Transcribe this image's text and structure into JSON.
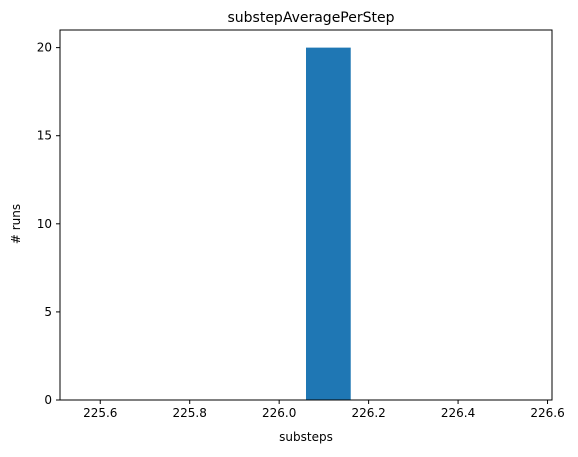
{
  "chart_data": {
    "type": "bar",
    "title": "substepAveragePerStep",
    "xlabel": "substeps",
    "ylabel": "# runs",
    "xlim": [
      225.51,
      226.61
    ],
    "ylim": [
      0,
      21
    ],
    "x_ticks": [
      "225.6",
      "225.8",
      "226.0",
      "226.2",
      "226.4",
      "226.6"
    ],
    "x_tick_values": [
      225.6,
      225.8,
      226.0,
      226.2,
      226.4,
      226.6
    ],
    "y_ticks": [
      "0",
      "5",
      "10",
      "15",
      "20"
    ],
    "y_tick_values": [
      0,
      5,
      10,
      15,
      20
    ],
    "bars": [
      {
        "x_start": 226.06,
        "x_end": 226.16,
        "value": 20
      }
    ],
    "bar_color": "#1f77b4",
    "grid": false,
    "legend": "none"
  }
}
